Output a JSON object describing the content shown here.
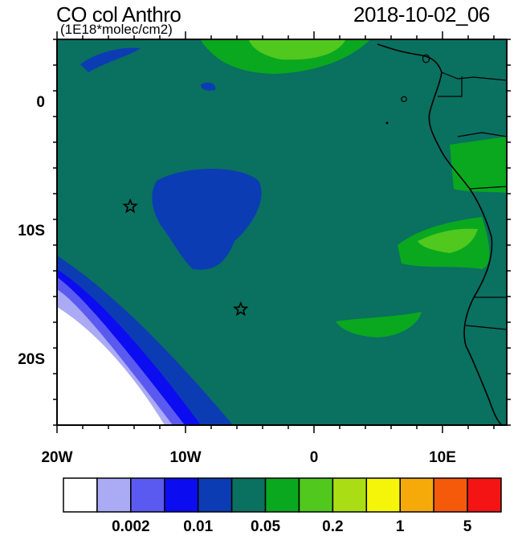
{
  "header": {
    "title": "CO col Anthro",
    "units": "(1E18*molec/cm2)",
    "datetime": "2018-10-02_06"
  },
  "map": {
    "lon_range": [
      -20,
      15
    ],
    "lat_range": [
      -25,
      5
    ],
    "y_ticks": [
      {
        "lat": 0,
        "label": "0"
      },
      {
        "lat": -10,
        "label": "10S"
      },
      {
        "lat": -20,
        "label": "20S"
      }
    ],
    "x_ticks": [
      {
        "lon": -20,
        "label": "20W"
      },
      {
        "lon": -10,
        "label": "10W"
      },
      {
        "lon": 0,
        "label": "0"
      },
      {
        "lon": 10,
        "label": "10E"
      }
    ],
    "markers": [
      {
        "lon": -14.3,
        "lat": -8.0
      },
      {
        "lon": -5.7,
        "lat": -16.0
      }
    ]
  },
  "colorbar": {
    "colors": [
      "#ffffff",
      "#aaaaf5",
      "#5a5af0",
      "#0c0cf0",
      "#0c3cb4",
      "#0a7060",
      "#0aa81e",
      "#50c81e",
      "#aadd14",
      "#f5f50a",
      "#f5aa0a",
      "#f55a0a",
      "#f51414"
    ],
    "labels": [
      {
        "after_index": 1,
        "text": "0.002"
      },
      {
        "after_index": 3,
        "text": "0.01"
      },
      {
        "after_index": 5,
        "text": "0.05"
      },
      {
        "after_index": 7,
        "text": "0.2"
      },
      {
        "after_index": 9,
        "text": "1"
      },
      {
        "after_index": 11,
        "text": "5"
      }
    ]
  },
  "colors": {
    "ocean_background": "#0a7060",
    "low_fill": "#0c3cb4",
    "green_fill": "#0aa81e",
    "lightgreen_fill": "#50c81e"
  }
}
